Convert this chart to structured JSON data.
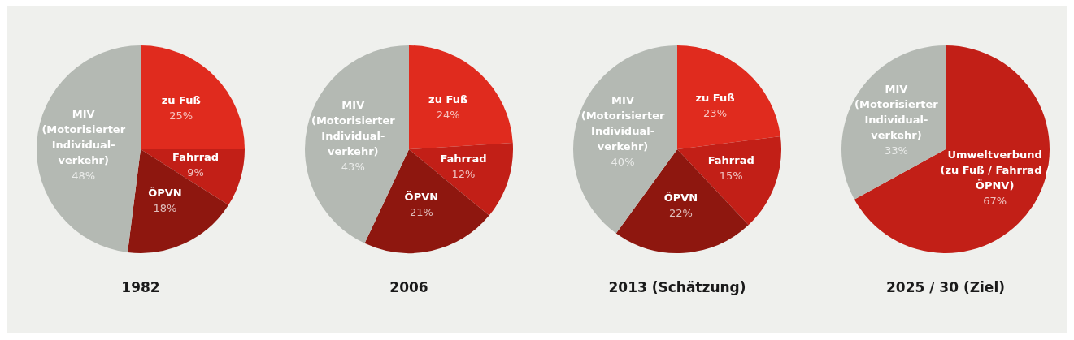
{
  "chart_data": [
    {
      "type": "pie",
      "title": "1982",
      "categories": [
        "zu Fuß",
        "Fahrrad",
        "ÖPVN",
        "MIV\n(Motorisierter\nIndividual-\nverkehr)"
      ],
      "values": [
        25,
        9,
        18,
        48
      ],
      "colors": [
        "#e02b1e",
        "#c21f17",
        "#8e170f",
        "#b4b9b3"
      ],
      "value_labels": [
        "25%",
        "9%",
        "18%",
        "48%"
      ]
    },
    {
      "type": "pie",
      "title": "2006",
      "categories": [
        "zu Fuß",
        "Fahrrad",
        "ÖPVN",
        "MIV\n(Motorisierter\nIndividual-\nverkehr)"
      ],
      "values": [
        24,
        12,
        21,
        43
      ],
      "colors": [
        "#e02b1e",
        "#c21f17",
        "#8e170f",
        "#b4b9b3"
      ],
      "value_labels": [
        "24%",
        "12%",
        "21%",
        "43%"
      ]
    },
    {
      "type": "pie",
      "title": "2013 (Schätzung)",
      "categories": [
        "zu Fuß",
        "Fahrrad",
        "ÖPVN",
        "MIV\n(Motorisierter\nIndividual-\nverkehr)"
      ],
      "values": [
        23,
        15,
        22,
        40
      ],
      "colors": [
        "#e02b1e",
        "#c21f17",
        "#8e170f",
        "#b4b9b3"
      ],
      "value_labels": [
        "23%",
        "15%",
        "22%",
        "40%"
      ]
    },
    {
      "type": "pie",
      "title": "2025 / 30 (Ziel)",
      "categories": [
        "Umweltverbund\n(zu Fuß / Fahrrad /\nÖPNV)",
        "MIV\n(Motorisierter\nIndividual-\nverkehr)"
      ],
      "values": [
        67,
        33
      ],
      "colors": [
        "#c21f17",
        "#b4b9b3"
      ],
      "value_labels": [
        "67%",
        "33%"
      ]
    }
  ]
}
